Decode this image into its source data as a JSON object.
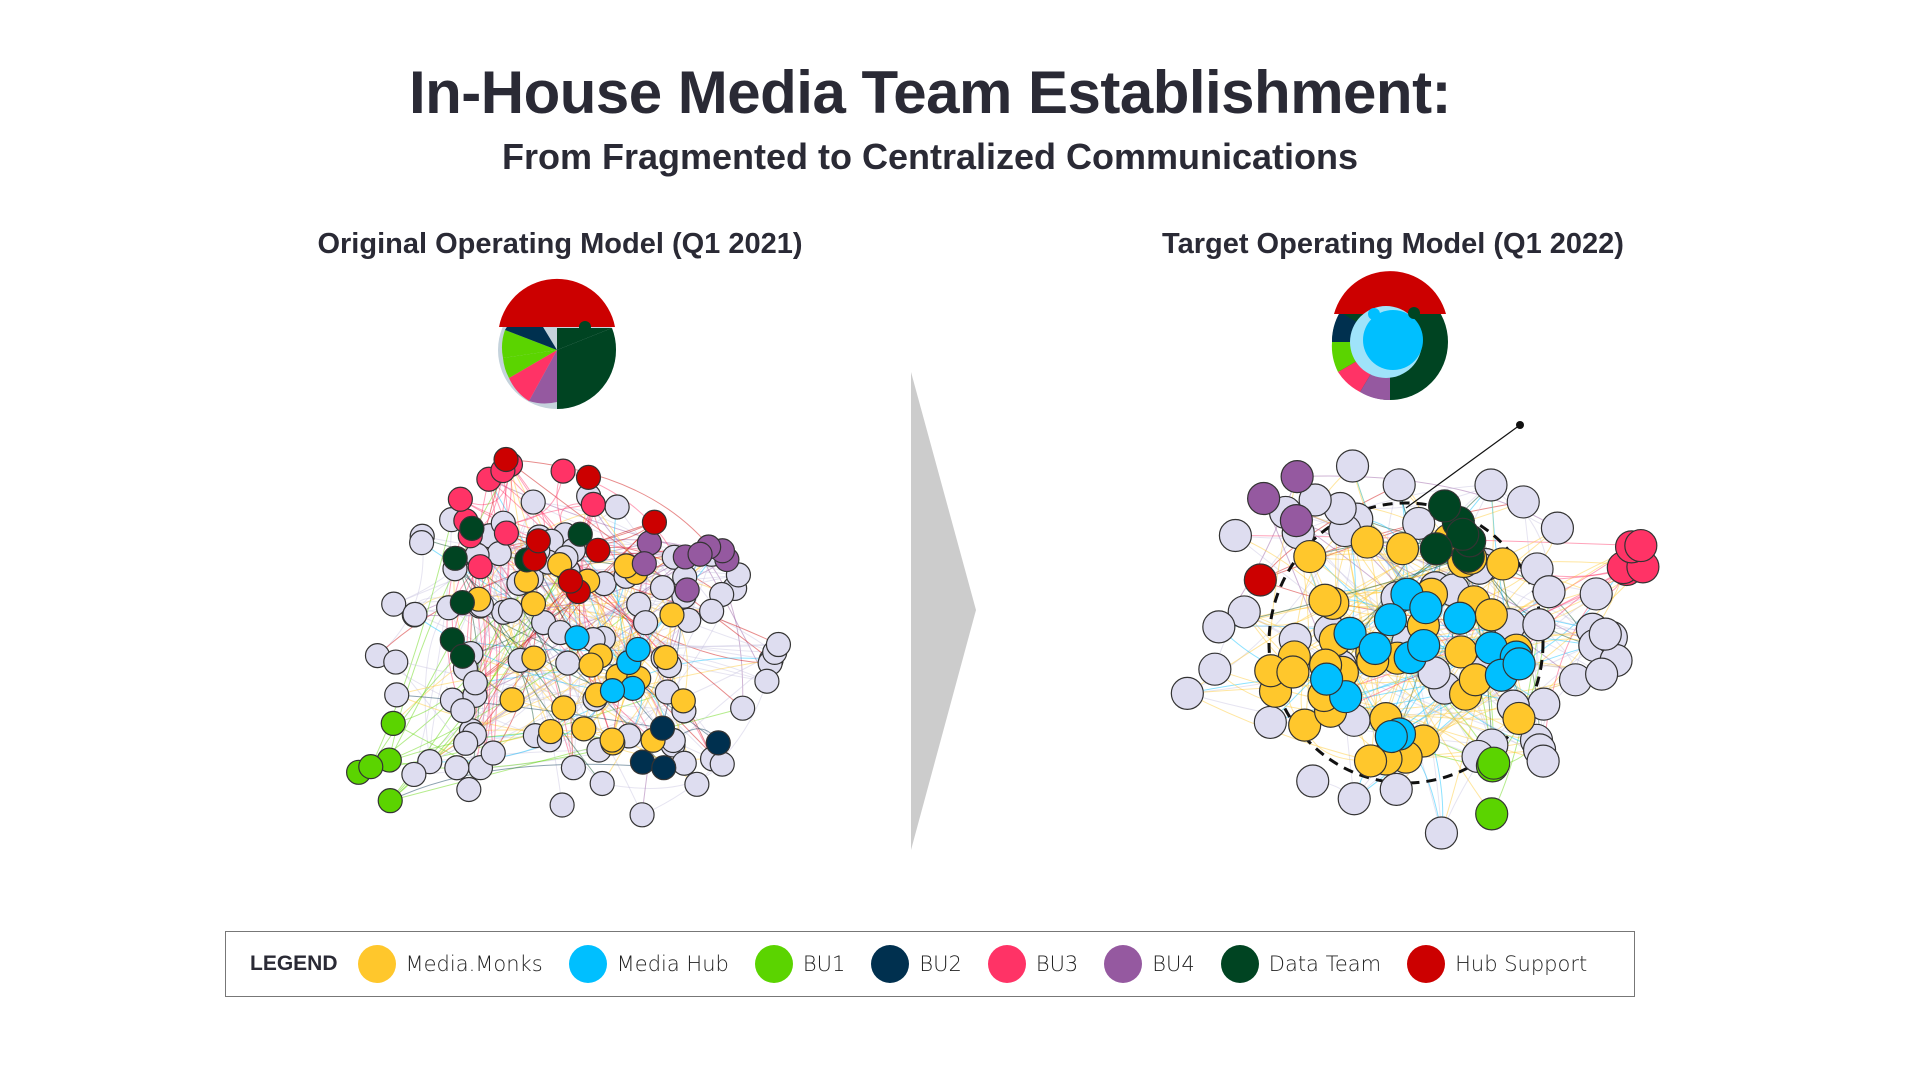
{
  "title": "In-House Media Team Establishment:",
  "subtitle": "From Fragmented to Centralized Communications",
  "panels": {
    "left": {
      "title": "Original Operating Model (Q1 2021)"
    },
    "right": {
      "title": "Target Operating Model (Q1 2022)"
    }
  },
  "legend": {
    "label": "LEGEND",
    "items": [
      {
        "label": "Media.Monks",
        "color": "#FFC72C"
      },
      {
        "label": "Media Hub",
        "color": "#00BFFF"
      },
      {
        "label": "BU1",
        "color": "#5BD400"
      },
      {
        "label": "BU2",
        "color": "#00304F"
      },
      {
        "label": "BU3",
        "color": "#FF3366"
      },
      {
        "label": "BU4",
        "color": "#9559A0"
      },
      {
        "label": "Data Team",
        "color": "#004422"
      },
      {
        "label": "Hub Support",
        "color": "#CC0000"
      }
    ]
  },
  "other_node_color": "#DEDDF0",
  "arrow_color": "#CCCCCC"
}
